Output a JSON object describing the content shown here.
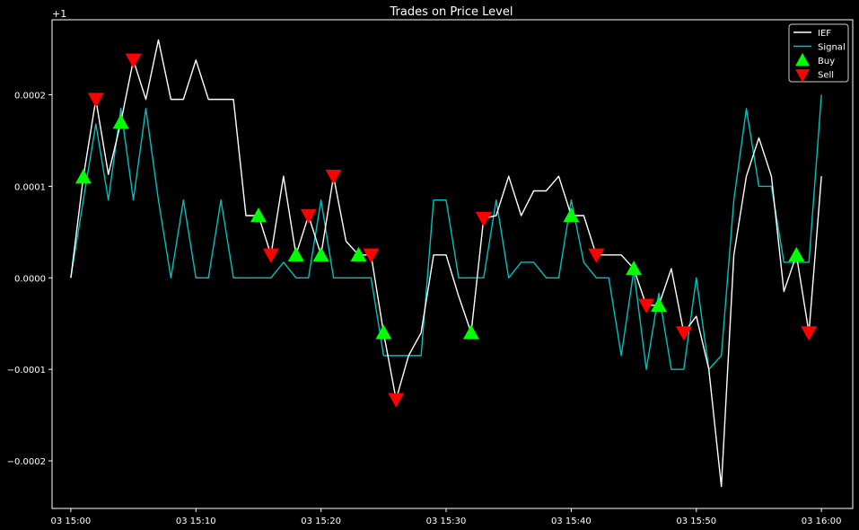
{
  "chart_data": {
    "type": "line",
    "title": "Trades on Price Level",
    "offset_label": "+1",
    "xlabel": "",
    "ylabel": "",
    "x_start": "03 15:00",
    "x_end": "03 16:00",
    "x_range_minutes": [
      -1.5,
      62.5
    ],
    "ylim": [
      -0.000252,
      0.000282
    ],
    "grid": false,
    "legend_position": "top-right",
    "x_ticks": [
      {
        "minute": 0,
        "label": "03 15:00"
      },
      {
        "minute": 10,
        "label": "03 15:10"
      },
      {
        "minute": 20,
        "label": "03 15:20"
      },
      {
        "minute": 30,
        "label": "03 15:30"
      },
      {
        "minute": 40,
        "label": "03 15:40"
      },
      {
        "minute": 50,
        "label": "03 15:50"
      },
      {
        "minute": 60,
        "label": "03 16:00"
      }
    ],
    "y_ticks": [
      {
        "value": 0.0002,
        "label": "0.0002"
      },
      {
        "value": 0.0001,
        "label": "0.0001"
      },
      {
        "value": 0.0,
        "label": "0.0000"
      },
      {
        "value": -0.0001,
        "label": "−0.0001"
      },
      {
        "value": -0.0002,
        "label": "−0.0002"
      }
    ],
    "colors": {
      "IEF": "#ffffff",
      "Signal": "#00c0c0",
      "Buy": "#00ff00",
      "Sell": "#ff0000",
      "axes": "#ffffff"
    },
    "series": [
      {
        "name": "IEF",
        "values": [
          0.0,
          0.00011,
          0.000195,
          0.000113,
          0.00017,
          0.000238,
          0.000195,
          0.00026,
          0.000195,
          0.000195,
          0.000238,
          0.000195,
          0.000195,
          0.000195,
          6.8e-05,
          6.8e-05,
          2.5e-05,
          0.000111,
          2.5e-05,
          6.8e-05,
          2.5e-05,
          0.000111,
          4e-05,
          2.5e-05,
          2.5e-05,
          -6e-05,
          -0.000133,
          -8.5e-05,
          -6e-05,
          2.5e-05,
          2.5e-05,
          -2e-05,
          -6e-05,
          6.5e-05,
          6.8e-05,
          0.000111,
          6.8e-05,
          9.5e-05,
          9.5e-05,
          0.000111,
          6.8e-05,
          6.8e-05,
          2.5e-05,
          2.5e-05,
          2.5e-05,
          1e-05,
          -3e-05,
          -3e-05,
          1e-05,
          -6e-05,
          -4.2e-05,
          -0.0001,
          -0.000228,
          2.5e-05,
          0.000111,
          0.000153,
          0.000111,
          -1.5e-05,
          2.5e-05,
          -6e-05,
          0.000111
        ]
      },
      {
        "name": "Signal",
        "values": [
          0.0,
          8.5e-05,
          0.000168,
          8.5e-05,
          0.000185,
          8.5e-05,
          0.000185,
          8.5e-05,
          0.0,
          8.5e-05,
          0.0,
          0.0,
          8.5e-05,
          0.0,
          0.0,
          0.0,
          0.0,
          1.7e-05,
          0.0,
          0.0,
          8.5e-05,
          0.0,
          0.0,
          0.0,
          0.0,
          -8.5e-05,
          -8.5e-05,
          -8.5e-05,
          -8.5e-05,
          8.5e-05,
          8.5e-05,
          0.0,
          0.0,
          0.0,
          8.5e-05,
          0.0,
          1.7e-05,
          1.7e-05,
          0.0,
          0.0,
          8.5e-05,
          1.7e-05,
          0.0,
          0.0,
          -8.5e-05,
          8e-06,
          -0.0001,
          -1.7e-05,
          -0.0001,
          -0.0001,
          0.0,
          -0.0001,
          -8.5e-05,
          8.5e-05,
          0.000185,
          0.0001,
          0.0001,
          1.7e-05,
          1.7e-05,
          1.7e-05,
          0.0002
        ]
      }
    ],
    "buy_points": [
      {
        "minute": 1,
        "value": 0.00011
      },
      {
        "minute": 4,
        "value": 0.00017
      },
      {
        "minute": 15,
        "value": 6.8e-05
      },
      {
        "minute": 18,
        "value": 2.5e-05
      },
      {
        "minute": 20,
        "value": 2.5e-05
      },
      {
        "minute": 23,
        "value": 2.5e-05
      },
      {
        "minute": 25,
        "value": -6e-05
      },
      {
        "minute": 32,
        "value": -6e-05
      },
      {
        "minute": 40,
        "value": 6.8e-05
      },
      {
        "minute": 45,
        "value": 1e-05
      },
      {
        "minute": 47,
        "value": -3e-05
      },
      {
        "minute": 58,
        "value": 2.5e-05
      }
    ],
    "sell_points": [
      {
        "minute": 2,
        "value": 0.000195
      },
      {
        "minute": 5,
        "value": 0.000238
      },
      {
        "minute": 16,
        "value": 2.5e-05
      },
      {
        "minute": 19,
        "value": 6.8e-05
      },
      {
        "minute": 21,
        "value": 0.000111
      },
      {
        "minute": 24,
        "value": 2.5e-05
      },
      {
        "minute": 26,
        "value": -0.000133
      },
      {
        "minute": 33,
        "value": 6.5e-05
      },
      {
        "minute": 42,
        "value": 2.5e-05
      },
      {
        "minute": 46,
        "value": -3e-05
      },
      {
        "minute": 49,
        "value": -6e-05
      },
      {
        "minute": 59,
        "value": -6e-05
      }
    ],
    "legend": [
      {
        "name": "IEF",
        "kind": "line"
      },
      {
        "name": "Signal",
        "kind": "line"
      },
      {
        "name": "Buy",
        "kind": "buy"
      },
      {
        "name": "Sell",
        "kind": "sell"
      }
    ]
  }
}
